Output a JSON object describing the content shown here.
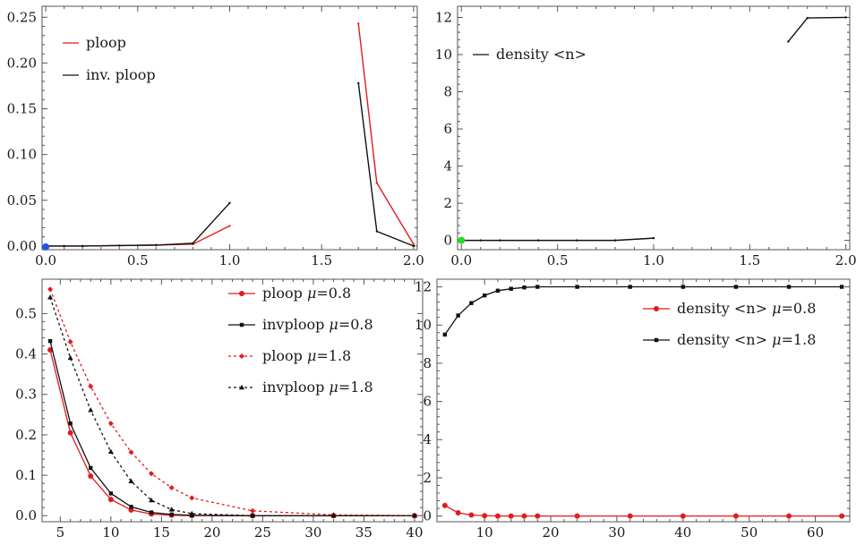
{
  "chart_data": [
    {
      "type": "line",
      "xlim": [
        -0.02,
        2.02
      ],
      "ylim": [
        -0.004,
        0.262
      ],
      "xticks": [
        0.0,
        0.5,
        1.0,
        1.5,
        2.0
      ],
      "xtick_labels": [
        "0.0",
        "0.5",
        "1.0",
        "1.5",
        "2.0"
      ],
      "yticks": [
        0.0,
        0.05,
        0.1,
        0.15,
        0.2,
        0.25
      ],
      "ytick_labels": [
        "0.00",
        "0.05",
        "0.10",
        "0.15",
        "0.20",
        "0.25"
      ],
      "legend_position": "top-left",
      "series": [
        {
          "name": "ploop",
          "color": "#e41a1c",
          "segments": [
            [
              [
                0.0,
                0.0
              ],
              [
                0.1,
                0.0
              ],
              [
                0.2,
                0.0
              ],
              [
                0.4,
                0.0005
              ],
              [
                0.6,
                0.001
              ],
              [
                0.8,
                0.002
              ],
              [
                1.0,
                0.022
              ]
            ],
            [
              [
                1.7,
                0.243
              ],
              [
                1.8,
                0.069
              ],
              [
                2.0,
                0.002
              ]
            ]
          ]
        },
        {
          "name": "inv. ploop",
          "color": "#111111",
          "segments": [
            [
              [
                0.0,
                0.0
              ],
              [
                0.1,
                0.0
              ],
              [
                0.2,
                0.0
              ],
              [
                0.4,
                0.0005
              ],
              [
                0.6,
                0.001
              ],
              [
                0.8,
                0.003
              ],
              [
                1.0,
                0.047
              ]
            ],
            [
              [
                1.7,
                0.178
              ],
              [
                1.8,
                0.016
              ],
              [
                2.0,
                0.0
              ]
            ]
          ]
        }
      ],
      "marker": {
        "x": 0.0,
        "y": -0.001,
        "color": "#2255dd"
      }
    },
    {
      "type": "line",
      "xlim": [
        -0.02,
        2.02
      ],
      "ylim": [
        -0.5,
        12.6
      ],
      "xticks": [
        0.0,
        0.5,
        1.0,
        1.5,
        2.0
      ],
      "xtick_labels": [
        "0.0",
        "0.5",
        "1.0",
        "1.5",
        "2.0"
      ],
      "yticks": [
        0,
        2,
        4,
        6,
        8,
        10,
        12
      ],
      "ytick_labels": [
        "0",
        "2",
        "4",
        "6",
        "8",
        "10",
        "12"
      ],
      "legend_position": "top-left",
      "series": [
        {
          "name": "density <n>",
          "color": "#111111",
          "segments": [
            [
              [
                0.0,
                0.0
              ],
              [
                0.1,
                0.0
              ],
              [
                0.2,
                0.0
              ],
              [
                0.4,
                0.0
              ],
              [
                0.6,
                0.0
              ],
              [
                0.8,
                0.0
              ],
              [
                1.0,
                0.12
              ]
            ],
            [
              [
                1.7,
                10.7
              ],
              [
                1.8,
                11.97
              ],
              [
                2.0,
                12.0
              ]
            ]
          ]
        }
      ],
      "marker": {
        "x": 0.0,
        "y": 0.0,
        "color": "#22dd22"
      }
    },
    {
      "type": "line",
      "xlim": [
        3.2,
        40.8
      ],
      "ylim": [
        -0.015,
        0.585
      ],
      "xticks": [
        5,
        10,
        15,
        20,
        25,
        30,
        35,
        40
      ],
      "xtick_labels": [
        "5",
        "10",
        "15",
        "20",
        "25",
        "30",
        "35",
        "40"
      ],
      "yticks": [
        0.0,
        0.1,
        0.2,
        0.3,
        0.4,
        0.5
      ],
      "ytick_labels": [
        "0.0",
        "0.1",
        "0.2",
        "0.3",
        "0.4",
        "0.5"
      ],
      "legend_position": "top-right",
      "series": [
        {
          "name": "ploop",
          "name_mu": "μ=0.8",
          "color": "#e41a1c",
          "dash": "",
          "marker": "circle",
          "x": [
            4,
            6,
            8,
            10,
            12,
            14,
            16,
            18,
            24,
            32,
            40
          ],
          "values": [
            0.41,
            0.205,
            0.098,
            0.04,
            0.014,
            0.004,
            0.001,
            0.0,
            0.0,
            0.0,
            0.0
          ]
        },
        {
          "name": "invploop",
          "name_mu": "μ=0.8",
          "color": "#111111",
          "dash": "",
          "marker": "square",
          "x": [
            4,
            6,
            8,
            10,
            12,
            14,
            16,
            18,
            24,
            32,
            40
          ],
          "values": [
            0.432,
            0.228,
            0.118,
            0.055,
            0.022,
            0.008,
            0.003,
            0.001,
            0.0,
            0.0,
            0.0
          ]
        },
        {
          "name": "ploop",
          "name_mu": "μ=1.8",
          "color": "#e41a1c",
          "dash": "3,3",
          "marker": "diamond",
          "x": [
            4,
            6,
            8,
            10,
            12,
            14,
            16,
            18,
            24,
            32,
            40
          ],
          "values": [
            0.56,
            0.43,
            0.32,
            0.228,
            0.157,
            0.104,
            0.069,
            0.044,
            0.012,
            0.002,
            0.0
          ]
        },
        {
          "name": "invploop",
          "name_mu": "μ=1.8",
          "color": "#111111",
          "dash": "3,3",
          "marker": "triangle",
          "x": [
            4,
            6,
            8,
            10,
            12,
            14,
            16,
            18,
            24,
            32,
            40
          ],
          "values": [
            0.54,
            0.39,
            0.261,
            0.158,
            0.085,
            0.038,
            0.015,
            0.005,
            0.0,
            0.0,
            0.0
          ]
        }
      ]
    },
    {
      "type": "line",
      "xlim": [
        2.8,
        65.2
      ],
      "ylim": [
        -0.3,
        12.4
      ],
      "xticks": [
        10,
        20,
        30,
        40,
        50,
        60
      ],
      "xtick_labels": [
        "10",
        "20",
        "30",
        "40",
        "50",
        "60"
      ],
      "yticks": [
        0,
        2,
        4,
        6,
        8,
        10,
        12
      ],
      "ytick_labels": [
        "0",
        "2",
        "4",
        "6",
        "8",
        "10",
        "12"
      ],
      "legend_position": "top-right",
      "series": [
        {
          "name": "density <n>",
          "name_mu": "μ=0.8",
          "color": "#e41a1c",
          "dash": "",
          "marker": "circle",
          "x": [
            4,
            6,
            8,
            10,
            12,
            14,
            16,
            18,
            24,
            32,
            40,
            48,
            56,
            64
          ],
          "values": [
            0.55,
            0.17,
            0.05,
            0.015,
            0.0,
            0.0,
            0.0,
            0.0,
            0.0,
            0.0,
            0.0,
            0.0,
            0.0,
            0.0
          ]
        },
        {
          "name": "density <n>",
          "name_mu": "μ=1.8",
          "color": "#111111",
          "dash": "",
          "marker": "square",
          "x": [
            4,
            6,
            8,
            10,
            12,
            14,
            16,
            18,
            24,
            32,
            40,
            48,
            56,
            64
          ],
          "values": [
            9.5,
            10.5,
            11.15,
            11.55,
            11.8,
            11.9,
            11.97,
            12.0,
            12.0,
            12.0,
            12.0,
            12.0,
            12.0,
            12.0
          ]
        }
      ]
    }
  ]
}
